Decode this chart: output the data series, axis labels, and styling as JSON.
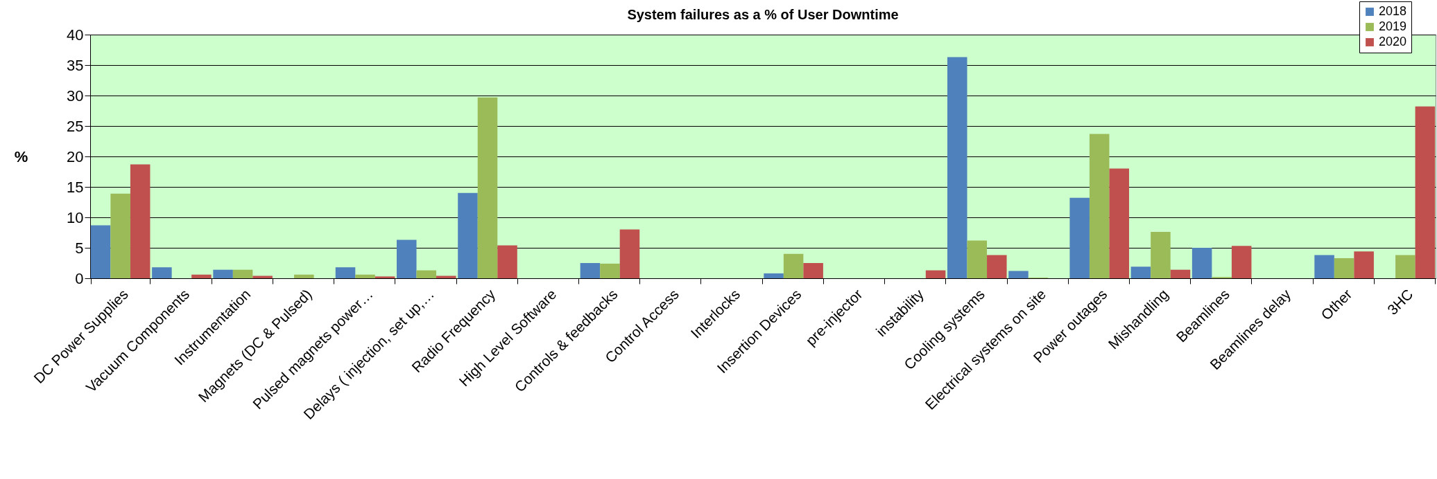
{
  "chart_data": {
    "type": "bar",
    "title": "System failures as a %  of User Downtime",
    "ylabel": "%",
    "categories": [
      "DC Power Supplies",
      "Vacuum Components",
      "Instrumentation",
      "Magnets (DC & Pulsed)",
      "Pulsed magnets power…",
      "Delays ( injection, set up,…",
      "Radio Frequency",
      "High Level Software",
      "Controls &  feedbacks",
      "Control Access",
      "Interlocks",
      "Insertion Devices",
      "pre-injector",
      "instability",
      "Cooling systems",
      "Electrical systems on site",
      "Power outages",
      "Mishandling",
      "Beamlines",
      "Beamlines delay",
      "Other",
      "3HC"
    ],
    "series": [
      {
        "name": "2018",
        "color": "#4f81bd",
        "values": [
          8.7,
          1.8,
          1.4,
          null,
          1.8,
          6.3,
          14.0,
          null,
          2.5,
          null,
          null,
          0.8,
          null,
          null,
          36.3,
          1.2,
          13.2,
          1.9,
          5.0,
          null,
          3.8,
          null
        ]
      },
      {
        "name": "2019",
        "color": "#9bbb59",
        "values": [
          13.9,
          null,
          1.4,
          0.6,
          0.6,
          1.3,
          29.7,
          null,
          2.4,
          null,
          null,
          4.0,
          null,
          null,
          6.2,
          0.1,
          23.7,
          7.6,
          0.2,
          null,
          3.3,
          3.8
        ]
      },
      {
        "name": "2020",
        "color": "#c0504d",
        "values": [
          18.7,
          0.6,
          0.4,
          null,
          0.3,
          0.4,
          5.4,
          null,
          8.0,
          null,
          null,
          2.5,
          null,
          1.3,
          3.8,
          null,
          18.0,
          1.4,
          5.3,
          null,
          4.4,
          28.2
        ]
      }
    ],
    "ylim": [
      0,
      40
    ],
    "yticks": [
      0,
      5,
      10,
      15,
      20,
      25,
      30,
      35,
      40
    ],
    "grid": "y",
    "legend": "top right"
  }
}
